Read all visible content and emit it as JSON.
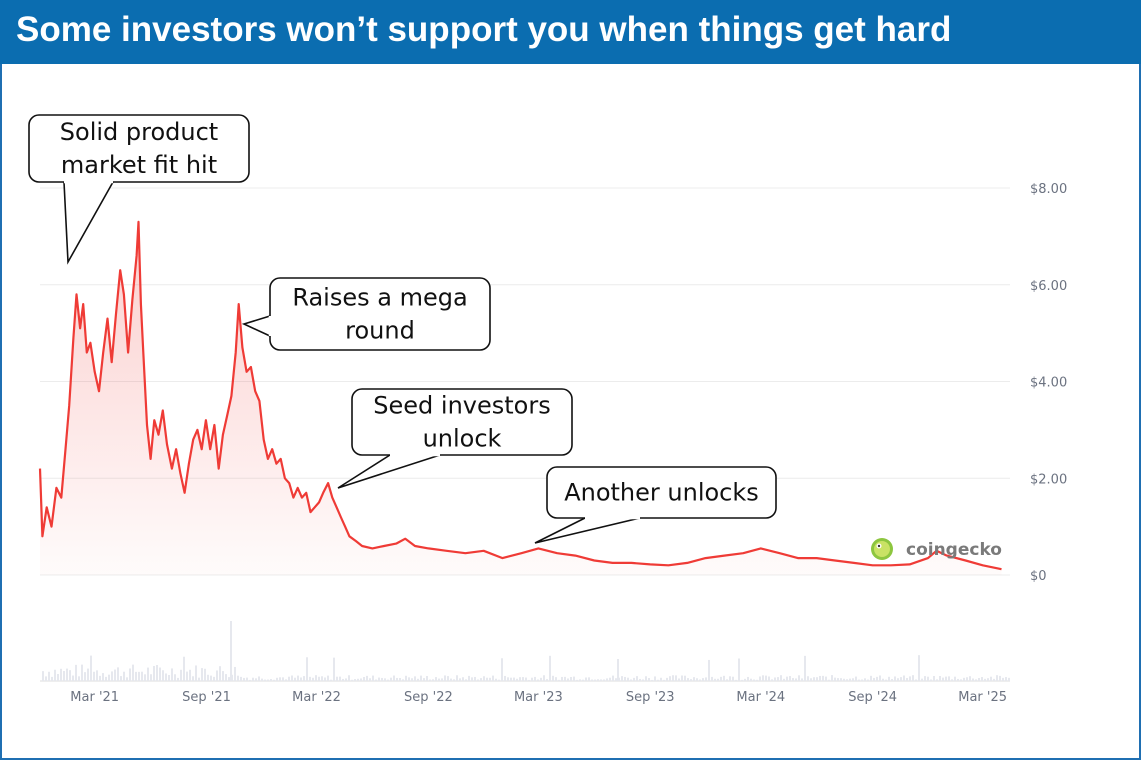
{
  "title": "Some investors won’t support you when things get hard",
  "watermark": "coingecko",
  "colors": {
    "header": "#0b6db0",
    "line": "#ef3b36",
    "grid": "#ececec",
    "ticks": "#6b7280"
  },
  "chart_data": {
    "type": "area",
    "title": "Some investors won’t support you when things get hard",
    "xlabel": "",
    "ylabel": "",
    "x_start": "2020-12-01",
    "x_end": "2025-04-15",
    "ylim": [
      0,
      8
    ],
    "grid": true,
    "y_ticks": [
      {
        "value": 0,
        "label": "$0"
      },
      {
        "value": 2,
        "label": "$2.00"
      },
      {
        "value": 4,
        "label": "$4.00"
      },
      {
        "value": 6,
        "label": "$6.00"
      },
      {
        "value": 8,
        "label": "$8.00"
      }
    ],
    "x_ticks": [
      {
        "date": "2021-03-01",
        "label": "Mar '21"
      },
      {
        "date": "2021-09-01",
        "label": "Sep '21"
      },
      {
        "date": "2022-03-01",
        "label": "Mar '22"
      },
      {
        "date": "2022-09-01",
        "label": "Sep '22"
      },
      {
        "date": "2023-03-01",
        "label": "Mar '23"
      },
      {
        "date": "2023-09-01",
        "label": "Sep '23"
      },
      {
        "date": "2024-03-01",
        "label": "Mar '24"
      },
      {
        "date": "2024-09-01",
        "label": "Sep '24"
      },
      {
        "date": "2025-03-01",
        "label": "Mar '25"
      }
    ],
    "series": [
      {
        "values": [
          {
            "x": "2020-12-01",
            "y": 2.2
          },
          {
            "x": "2020-12-05",
            "y": 0.8
          },
          {
            "x": "2020-12-12",
            "y": 1.4
          },
          {
            "x": "2020-12-20",
            "y": 1.0
          },
          {
            "x": "2020-12-28",
            "y": 1.8
          },
          {
            "x": "2021-01-05",
            "y": 1.6
          },
          {
            "x": "2021-01-12",
            "y": 2.6
          },
          {
            "x": "2021-01-18",
            "y": 3.5
          },
          {
            "x": "2021-01-25",
            "y": 4.9
          },
          {
            "x": "2021-01-30",
            "y": 5.8
          },
          {
            "x": "2021-02-05",
            "y": 5.1
          },
          {
            "x": "2021-02-10",
            "y": 5.6
          },
          {
            "x": "2021-02-16",
            "y": 4.6
          },
          {
            "x": "2021-02-22",
            "y": 4.8
          },
          {
            "x": "2021-03-01",
            "y": 4.2
          },
          {
            "x": "2021-03-08",
            "y": 3.8
          },
          {
            "x": "2021-03-15",
            "y": 4.6
          },
          {
            "x": "2021-03-22",
            "y": 5.3
          },
          {
            "x": "2021-03-29",
            "y": 4.4
          },
          {
            "x": "2021-04-05",
            "y": 5.4
          },
          {
            "x": "2021-04-12",
            "y": 6.3
          },
          {
            "x": "2021-04-18",
            "y": 5.8
          },
          {
            "x": "2021-04-25",
            "y": 4.6
          },
          {
            "x": "2021-05-02",
            "y": 5.7
          },
          {
            "x": "2021-05-09",
            "y": 6.6
          },
          {
            "x": "2021-05-12",
            "y": 7.3
          },
          {
            "x": "2021-05-16",
            "y": 5.6
          },
          {
            "x": "2021-05-20",
            "y": 4.6
          },
          {
            "x": "2021-05-26",
            "y": 3.1
          },
          {
            "x": "2021-06-01",
            "y": 2.4
          },
          {
            "x": "2021-06-07",
            "y": 3.2
          },
          {
            "x": "2021-06-14",
            "y": 2.9
          },
          {
            "x": "2021-06-21",
            "y": 3.4
          },
          {
            "x": "2021-06-28",
            "y": 2.7
          },
          {
            "x": "2021-07-06",
            "y": 2.2
          },
          {
            "x": "2021-07-13",
            "y": 2.6
          },
          {
            "x": "2021-07-20",
            "y": 2.1
          },
          {
            "x": "2021-07-27",
            "y": 1.7
          },
          {
            "x": "2021-08-03",
            "y": 2.3
          },
          {
            "x": "2021-08-10",
            "y": 2.8
          },
          {
            "x": "2021-08-17",
            "y": 3.0
          },
          {
            "x": "2021-08-24",
            "y": 2.6
          },
          {
            "x": "2021-08-31",
            "y": 3.2
          },
          {
            "x": "2021-09-07",
            "y": 2.6
          },
          {
            "x": "2021-09-14",
            "y": 3.1
          },
          {
            "x": "2021-09-21",
            "y": 2.2
          },
          {
            "x": "2021-09-28",
            "y": 2.9
          },
          {
            "x": "2021-10-05",
            "y": 3.3
          },
          {
            "x": "2021-10-12",
            "y": 3.7
          },
          {
            "x": "2021-10-19",
            "y": 4.6
          },
          {
            "x": "2021-10-24",
            "y": 5.6
          },
          {
            "x": "2021-10-30",
            "y": 4.7
          },
          {
            "x": "2021-11-06",
            "y": 4.2
          },
          {
            "x": "2021-11-13",
            "y": 4.3
          },
          {
            "x": "2021-11-20",
            "y": 3.8
          },
          {
            "x": "2021-11-27",
            "y": 3.6
          },
          {
            "x": "2021-12-04",
            "y": 2.8
          },
          {
            "x": "2021-12-11",
            "y": 2.4
          },
          {
            "x": "2021-12-18",
            "y": 2.6
          },
          {
            "x": "2021-12-25",
            "y": 2.3
          },
          {
            "x": "2022-01-01",
            "y": 2.4
          },
          {
            "x": "2022-01-08",
            "y": 2.0
          },
          {
            "x": "2022-01-15",
            "y": 1.9
          },
          {
            "x": "2022-01-22",
            "y": 1.6
          },
          {
            "x": "2022-01-29",
            "y": 1.8
          },
          {
            "x": "2022-02-05",
            "y": 1.6
          },
          {
            "x": "2022-02-12",
            "y": 1.7
          },
          {
            "x": "2022-02-19",
            "y": 1.3
          },
          {
            "x": "2022-02-26",
            "y": 1.4
          },
          {
            "x": "2022-03-05",
            "y": 1.5
          },
          {
            "x": "2022-03-12",
            "y": 1.7
          },
          {
            "x": "2022-03-20",
            "y": 1.9
          },
          {
            "x": "2022-03-27",
            "y": 1.6
          },
          {
            "x": "2022-04-03",
            "y": 1.4
          },
          {
            "x": "2022-04-10",
            "y": 1.2
          },
          {
            "x": "2022-04-17",
            "y": 1.0
          },
          {
            "x": "2022-04-24",
            "y": 0.8
          },
          {
            "x": "2022-05-05",
            "y": 0.7
          },
          {
            "x": "2022-05-15",
            "y": 0.6
          },
          {
            "x": "2022-06-01",
            "y": 0.55
          },
          {
            "x": "2022-06-20",
            "y": 0.6
          },
          {
            "x": "2022-07-10",
            "y": 0.65
          },
          {
            "x": "2022-07-25",
            "y": 0.75
          },
          {
            "x": "2022-08-10",
            "y": 0.6
          },
          {
            "x": "2022-09-01",
            "y": 0.55
          },
          {
            "x": "2022-10-01",
            "y": 0.5
          },
          {
            "x": "2022-11-01",
            "y": 0.45
          },
          {
            "x": "2022-12-01",
            "y": 0.5
          },
          {
            "x": "2023-01-01",
            "y": 0.35
          },
          {
            "x": "2023-02-01",
            "y": 0.45
          },
          {
            "x": "2023-03-01",
            "y": 0.55
          },
          {
            "x": "2023-04-01",
            "y": 0.45
          },
          {
            "x": "2023-05-01",
            "y": 0.4
          },
          {
            "x": "2023-06-01",
            "y": 0.3
          },
          {
            "x": "2023-07-01",
            "y": 0.25
          },
          {
            "x": "2023-08-01",
            "y": 0.25
          },
          {
            "x": "2023-09-01",
            "y": 0.22
          },
          {
            "x": "2023-10-01",
            "y": 0.2
          },
          {
            "x": "2023-11-01",
            "y": 0.25
          },
          {
            "x": "2023-12-01",
            "y": 0.35
          },
          {
            "x": "2024-01-01",
            "y": 0.4
          },
          {
            "x": "2024-02-01",
            "y": 0.45
          },
          {
            "x": "2024-03-01",
            "y": 0.55
          },
          {
            "x": "2024-04-01",
            "y": 0.45
          },
          {
            "x": "2024-05-01",
            "y": 0.35
          },
          {
            "x": "2024-06-01",
            "y": 0.35
          },
          {
            "x": "2024-07-01",
            "y": 0.3
          },
          {
            "x": "2024-08-01",
            "y": 0.25
          },
          {
            "x": "2024-09-01",
            "y": 0.2
          },
          {
            "x": "2024-10-01",
            "y": 0.2
          },
          {
            "x": "2024-11-01",
            "y": 0.22
          },
          {
            "x": "2024-12-01",
            "y": 0.35
          },
          {
            "x": "2024-12-15",
            "y": 0.5
          },
          {
            "x": "2025-01-01",
            "y": 0.4
          },
          {
            "x": "2025-02-01",
            "y": 0.3
          },
          {
            "x": "2025-03-01",
            "y": 0.2
          },
          {
            "x": "2025-04-01",
            "y": 0.12
          }
        ]
      }
    ],
    "annotations": [
      {
        "lines": [
          "Solid product",
          "market fit hit"
        ]
      },
      {
        "lines": [
          "Raises a mega",
          "round"
        ]
      },
      {
        "lines": [
          "Seed investors",
          "unlock"
        ]
      },
      {
        "lines": [
          "Another unlocks"
        ]
      }
    ]
  }
}
